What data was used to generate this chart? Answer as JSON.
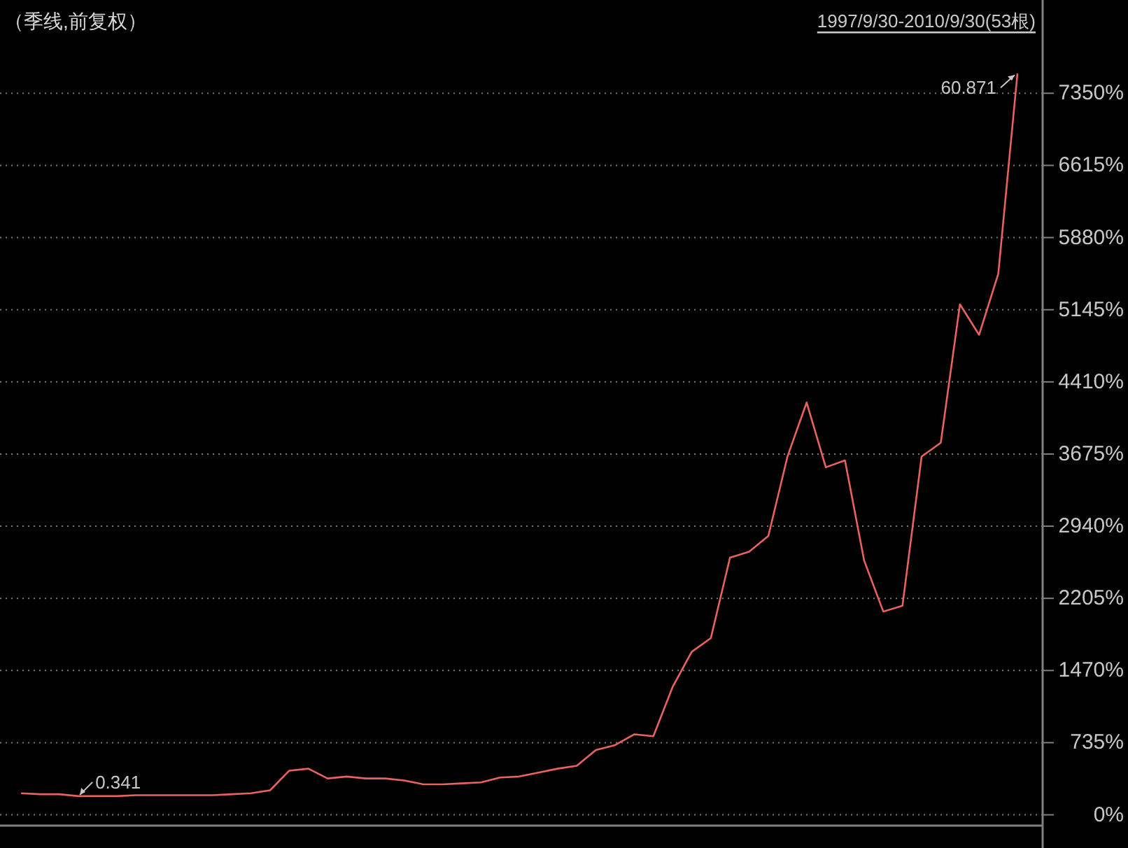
{
  "chart_data": {
    "type": "line",
    "title": "（季线,前复权）",
    "subtitle": "1997/9/30-2010/9/30(53根)",
    "categories": [
      null,
      null,
      null,
      null,
      null,
      null,
      null,
      null,
      null,
      null,
      null,
      null,
      null,
      null,
      null,
      null,
      null,
      null,
      null,
      null,
      null,
      null,
      null,
      null,
      null,
      null,
      null,
      null,
      null,
      null,
      null,
      null,
      null,
      null,
      null,
      null,
      null,
      null,
      null,
      null,
      null,
      null,
      null,
      null,
      null,
      null,
      null,
      null,
      null,
      null,
      null,
      null,
      null
    ],
    "series": [
      {
        "color": "#e8625e",
        "values": [
          220,
          210,
          210,
          190,
          190,
          190,
          200,
          200,
          200,
          200,
          200,
          210,
          220,
          250,
          450,
          470,
          370,
          390,
          370,
          370,
          350,
          310,
          310,
          320,
          330,
          380,
          390,
          430,
          470,
          500,
          660,
          710,
          820,
          800,
          1300,
          1660,
          1800,
          2620,
          2680,
          2840,
          3650,
          4200,
          3540,
          3610,
          2590,
          2070,
          2130,
          3650,
          3790,
          5200,
          4890,
          5510,
          7550
        ]
      }
    ],
    "ylim": [
      -110,
      8300
    ],
    "yticks": [
      {
        "value": 0,
        "label": "0%"
      },
      {
        "value": 735,
        "label": "735%"
      },
      {
        "value": 1470,
        "label": "1470%"
      },
      {
        "value": 2205,
        "label": "2205%"
      },
      {
        "value": 2940,
        "label": "2940%"
      },
      {
        "value": 3675,
        "label": "3675%"
      },
      {
        "value": 4410,
        "label": "4410%"
      },
      {
        "value": 5145,
        "label": "5145%"
      },
      {
        "value": 5880,
        "label": "5880%"
      },
      {
        "value": 6615,
        "label": "6615%"
      },
      {
        "value": 7350,
        "label": "7350%"
      }
    ],
    "grid": "y",
    "tick_labels": "y",
    "annotations": [
      "0.341",
      "60.871"
    ]
  }
}
